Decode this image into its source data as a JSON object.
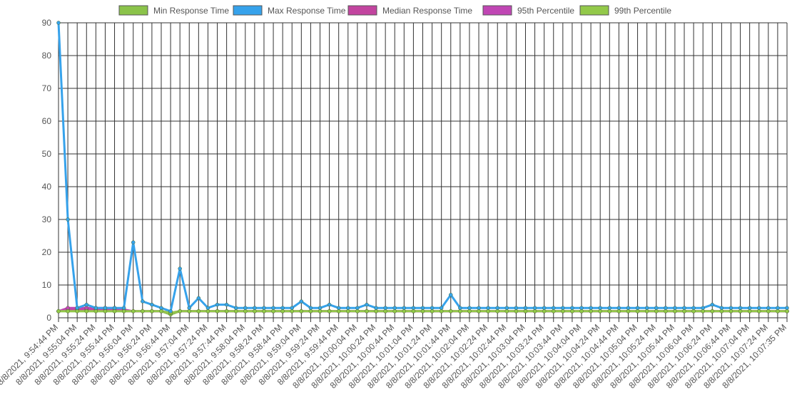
{
  "chart_data": {
    "type": "line",
    "categories": [
      "8/8/2021, 9:54:44 PM",
      null,
      "8/8/2021, 9:55:04 PM",
      null,
      "8/8/2021, 9:55:24 PM",
      null,
      "8/8/2021, 9:55:44 PM",
      null,
      "8/8/2021, 9:56:04 PM",
      null,
      "8/8/2021, 9:56:24 PM",
      null,
      "8/8/2021, 9:56:44 PM",
      null,
      "8/8/2021, 9:57:04 PM",
      null,
      "8/8/2021, 9:57:24 PM",
      null,
      "8/8/2021, 9:57:44 PM",
      null,
      "8/8/2021, 9:58:04 PM",
      null,
      "8/8/2021, 9:58:24 PM",
      null,
      "8/8/2021, 9:58:44 PM",
      null,
      "8/8/2021, 9:59:04 PM",
      null,
      "8/8/2021, 9:59:24 PM",
      null,
      "8/8/2021, 9:59:44 PM",
      null,
      "8/8/2021, 10:00:04 PM",
      null,
      "8/8/2021, 10:00:24 PM",
      null,
      "8/8/2021, 10:00:44 PM",
      null,
      "8/8/2021, 10:01:04 PM",
      null,
      "8/8/2021, 10:01:24 PM",
      null,
      "8/8/2021, 10:01:44 PM",
      null,
      "8/8/2021, 10:02:04 PM",
      null,
      "8/8/2021, 10:02:24 PM",
      null,
      "8/8/2021, 10:02:44 PM",
      null,
      "8/8/2021, 10:03:04 PM",
      null,
      "8/8/2021, 10:03:24 PM",
      null,
      "8/8/2021, 10:03:44 PM",
      null,
      "8/8/2021, 10:04:04 PM",
      null,
      "8/8/2021, 10:04:24 PM",
      null,
      "8/8/2021, 10:04:44 PM",
      null,
      "8/8/2021, 10:05:04 PM",
      null,
      "8/8/2021, 10:05:24 PM",
      null,
      "8/8/2021, 10:05:44 PM",
      null,
      "8/8/2021, 10:06:04 PM",
      null,
      "8/8/2021, 10:06:24 PM",
      null,
      "8/8/2021, 10:06:44 PM",
      null,
      "8/8/2021, 10:07:04 PM",
      null,
      "8/8/2021, 10:07:24 PM",
      null,
      "8/8/2021, 10:07:35 PM"
    ],
    "series": [
      {
        "name": "Min Response Time",
        "color": "#8bc34a",
        "values": [
          2,
          2,
          2,
          2,
          2,
          2,
          2,
          2,
          2,
          2,
          2,
          2,
          1,
          2,
          2,
          2,
          2,
          2,
          2,
          2,
          2,
          2,
          2,
          2,
          2,
          2,
          2,
          2,
          2,
          2,
          2,
          2,
          2,
          2,
          2,
          2,
          2,
          2,
          2,
          2,
          2,
          2,
          2,
          2,
          2,
          2,
          2,
          2,
          2,
          2,
          2,
          2,
          2,
          2,
          2,
          2,
          2,
          2,
          2,
          2,
          2,
          2,
          2,
          2,
          2,
          2,
          2,
          2,
          2,
          2,
          2,
          2,
          2,
          2,
          2,
          2,
          2,
          2,
          2
        ]
      },
      {
        "name": "Max Response Time",
        "color": "#36a2eb",
        "values": [
          90,
          30,
          3,
          4,
          3,
          3,
          3,
          3,
          23,
          5,
          4,
          3,
          2,
          15,
          3,
          6,
          3,
          4,
          4,
          3,
          3,
          3,
          3,
          3,
          3,
          3,
          5,
          3,
          3,
          4,
          3,
          3,
          3,
          4,
          3,
          3,
          3,
          3,
          3,
          3,
          3,
          3,
          7,
          3,
          3,
          3,
          3,
          3,
          3,
          3,
          3,
          3,
          3,
          3,
          3,
          3,
          3,
          3,
          3,
          3,
          3,
          3,
          3,
          3,
          3,
          3,
          3,
          3,
          3,
          3,
          4,
          3,
          3,
          3,
          3,
          3,
          3,
          3,
          3
        ]
      },
      {
        "name": "Median Response Time",
        "color": "#c2449f",
        "values": [
          2,
          2.5,
          2.5,
          2.5,
          2.5,
          2.5,
          2.5,
          2,
          2,
          2,
          2,
          2,
          1.5,
          2,
          2,
          2,
          2,
          2,
          2,
          2,
          2,
          2,
          2,
          2,
          2,
          2,
          2,
          2,
          2,
          2,
          2,
          2,
          2,
          2,
          2,
          2,
          2,
          2,
          2,
          2,
          2,
          2,
          2,
          2,
          2,
          2,
          2,
          2,
          2,
          2,
          2,
          2,
          2,
          2,
          2,
          2,
          2,
          2,
          2,
          2,
          2,
          2,
          2,
          2,
          2,
          2,
          2,
          2,
          2,
          2,
          2,
          2,
          2,
          2,
          2,
          2,
          2,
          2,
          2
        ]
      },
      {
        "name": "95th Percentile",
        "color": "#c046b4",
        "values": [
          2,
          3,
          3,
          3,
          3,
          3,
          3,
          2.5,
          2,
          2,
          2,
          2,
          1.5,
          2,
          2,
          2,
          2,
          2,
          2,
          2,
          2,
          2,
          2,
          2,
          2,
          2,
          2,
          2,
          2,
          2,
          2,
          2,
          2,
          2,
          2,
          2,
          2,
          2,
          2,
          2,
          2,
          2,
          2,
          2,
          2,
          2,
          2,
          2,
          2,
          2,
          2,
          2,
          2,
          2,
          2,
          2,
          2,
          2,
          2,
          2,
          2,
          2,
          2,
          2,
          2,
          2,
          2,
          2,
          2,
          2,
          2,
          2,
          2,
          2,
          2,
          2,
          2,
          2,
          2
        ]
      },
      {
        "name": "99th Percentile",
        "color": "#93c94a",
        "values": [
          2,
          2,
          2,
          2,
          2,
          2,
          2,
          2,
          2,
          2,
          2,
          2,
          1.5,
          2,
          2,
          2,
          2,
          2,
          2,
          2,
          2,
          2,
          2,
          2,
          2,
          2,
          2,
          2,
          2,
          2,
          2,
          2,
          2,
          2,
          2,
          2,
          2,
          2,
          2,
          2,
          2,
          2,
          2,
          2,
          2,
          2,
          2,
          2,
          2,
          2,
          2,
          2,
          2,
          2,
          2,
          2,
          2,
          2,
          2,
          2,
          2,
          2,
          2,
          2,
          2,
          2,
          2,
          2,
          2,
          2,
          2,
          2,
          2,
          2,
          2,
          2,
          2,
          2,
          2
        ]
      }
    ],
    "ylim": [
      0,
      90
    ],
    "yticks": [
      0,
      10,
      20,
      30,
      40,
      50,
      60,
      70,
      80,
      90
    ],
    "grid": true,
    "legend": "top"
  }
}
